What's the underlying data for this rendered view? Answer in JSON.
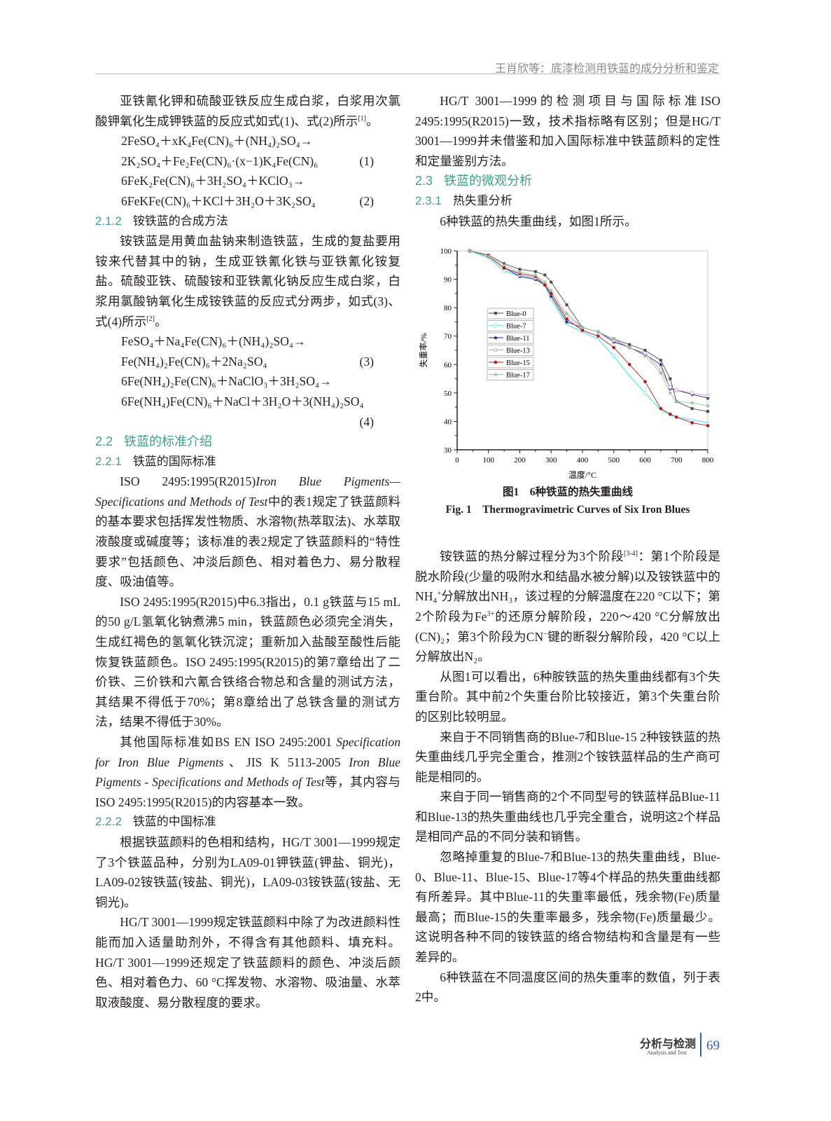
{
  "header": {
    "running_title": "王肖欣等：底漆检测用铁蓝的成分分析和鉴定"
  },
  "left": {
    "blocks": [
      {
        "type": "p",
        "segs": [
          "亚铁氰化钾和硫酸亚铁反应生成白浆，白浆用次氯酸钾氧化生成钾铁蓝的反应式如式(1)、式(2)所示",
          {
            "sup": "[1]"
          },
          "。"
        ]
      },
      {
        "type": "eq",
        "segs": [
          "2FeSO₄＋xK₄Fe(CN)₆＋(NH₄)₂SO₄→"
        ]
      },
      {
        "type": "eq",
        "segs": [
          "2K₂SO₄＋Fe₂Fe(CN)₆·(x−1)K₄Fe(CN)₆"
        ],
        "num": "(1)"
      },
      {
        "type": "eq",
        "segs": [
          "6FeK₂Fe(CN)₆＋3H₂SO₄＋KClO₃→"
        ]
      },
      {
        "type": "eq",
        "segs": [
          "6FeKFe(CN)₆＋KCl＋3H₂O＋3K₂SO₄"
        ],
        "num": "(2)"
      },
      {
        "type": "h3",
        "num": "2.1.2",
        "title": "铵铁蓝的合成方法"
      },
      {
        "type": "p",
        "segs": [
          "铵铁蓝是用黄血盐钠来制造铁蓝，生成的复盐要用铵来代替其中的钠，生成亚铁氰化铁与亚铁氰化铵复盐。硫酸亚铁、硫酸铵和亚铁氰化钠反应生成白浆，白浆用氯酸钠氧化生成铵铁蓝的反应式分两步，如式(3)、式(4)所示",
          {
            "sup": "[2]"
          },
          "。"
        ]
      },
      {
        "type": "eq",
        "segs": [
          "FeSO₄＋Na₄Fe(CN)₆＋(NH₄)₂SO₄→"
        ]
      },
      {
        "type": "eq",
        "segs": [
          "Fe(NH₄)₂Fe(CN)₆＋2Na₂SO₄"
        ],
        "num": "(3)"
      },
      {
        "type": "eq",
        "segs": [
          "6Fe(NH₄)₂Fe(CN)₆＋NaClO₃＋3H₂SO₄→"
        ]
      },
      {
        "type": "eq",
        "segs": [
          "6Fe(NH₄)Fe(CN)₆＋NaCl＋3H₂O＋3(NH₄)₂SO₄"
        ]
      },
      {
        "type": "eqnum",
        "num": "(4)"
      },
      {
        "type": "h2",
        "num": "2.2",
        "title": "铁蓝的标准介绍"
      },
      {
        "type": "h3",
        "num": "2.2.1",
        "title": "铁蓝的国际标准"
      },
      {
        "type": "p",
        "segs": [
          "ISO 2495:1995(R2015)",
          {
            "i": "Iron Blue Pigments—Specifications and Methods of Test"
          },
          "中的表1规定了铁蓝颜料的基本要求包括挥发性物质、水溶物(热萃取法)、水萃取液酸度或碱度等；该标准的表2规定了铁蓝颜料的“特性要求”包括颜色、冲淡后颜色、相对着色力、易分散程度、吸油值等。"
        ]
      },
      {
        "type": "p",
        "segs": [
          "ISO 2495:1995(R2015)中6.3指出，0.1 g铁蓝与15 mL的50 g/L氢氧化钠煮沸5 min，铁蓝颜色必须完全消失，生成红褐色的氢氧化铁沉淀；重新加入盐酸至酸性后能恢复铁蓝颜色。ISO 2495:1995(R2015)的第7章给出了二价铁、三价铁和六氰合铁络合物总和含量的测试方法，其结果不得低于70%；第8章给出了总铁含量的测试方法，结果不得低于30%。"
        ]
      },
      {
        "type": "p",
        "segs": [
          "其他国际标准如BS EN ISO 2495:2001 ",
          {
            "i": "Specification for Iron Blue Pigments"
          },
          "、JIS K 5113-2005 ",
          {
            "i": "Iron Blue Pigments - Specifications and Methods of Test"
          },
          "等，其内容与ISO 2495:1995(R2015)的内容基本一致。"
        ]
      },
      {
        "type": "h3",
        "num": "2.2.2",
        "title": "铁蓝的中国标准"
      },
      {
        "type": "p",
        "segs": [
          "根据铁蓝颜料的色相和结构，HG/T 3001—1999规定了3个铁蓝品种，分别为LA09-01钾铁蓝(钾盐、铜光)，LA09-02铵铁蓝(铵盐、铜光)，LA09-03铵铁蓝(铵盐、无铜光)。"
        ]
      },
      {
        "type": "p",
        "segs": [
          "HG/T 3001—1999规定铁蓝颜料中除了为改进颜料性能而加入适量助剂外，不得含有其他颜料、填充料。HG/T 3001—1999还规定了铁蓝颜料的颜色、冲淡后颜色、相对着色力、60 °C挥发物、水溶物、吸油量、水萃取液酸度、易分散程度的要求。"
        ]
      }
    ]
  },
  "right_top": {
    "blocks": [
      {
        "type": "p",
        "segs": [
          "HG/T 3001—1999的检测项目与国际标准ISO 2495:1995(R2015)一致，技术指标略有区别；但是HG/T 3001—1999并未借鉴和加入国际标准中铁蓝颜料的定性和定量鉴别方法。"
        ]
      },
      {
        "type": "h2",
        "num": "2.3",
        "title": "铁蓝的微观分析"
      },
      {
        "type": "h3",
        "num": "2.3.1",
        "title": "热失重分析"
      },
      {
        "type": "p",
        "segs": [
          "6种铁蓝的热失重曲线，如图1所示。"
        ]
      }
    ]
  },
  "right_bottom": {
    "blocks": [
      {
        "type": "p",
        "segs": [
          "铵铁蓝的热分解过程分为3个阶段",
          {
            "sup": "[3-4]"
          },
          "：第1个阶段是脱水阶段(少量的吸附水和结晶水被分解)以及铵铁蓝中的NH₄",
          {
            "sup": "+"
          },
          "分解放出NH₃，该过程的分解温度在220 °C以下；第2个阶段为Fe",
          {
            "sup": "3+"
          },
          "的还原分解阶段，220～420 °C分解放出(CN)₂；第3个阶段为CN",
          {
            "sup": "−"
          },
          "键的断裂分解阶段，420 °C以上分解放出N₂。"
        ]
      },
      {
        "type": "p",
        "segs": [
          "从图1可以看出，6种胺铁蓝的热失重曲线都有3个失重台阶。其中前2个失重台阶比较接近，第3个失重台阶的区别比较明显。"
        ]
      },
      {
        "type": "p",
        "segs": [
          "来自于不同销售商的Blue-7和Blue-15 2种铵铁蓝的热失重曲线几乎完全重合，推测2个铵铁蓝样品的生产商可能是相同的。"
        ]
      },
      {
        "type": "p",
        "segs": [
          "来自于同一销售商的2个不同型号的铁蓝样品Blue-11和Blue-13的热失重曲线也几乎完全重合，说明这2个样品是相同产品的不同分装和销售。"
        ]
      },
      {
        "type": "p",
        "segs": [
          "忽略掉重复的Blue-7和Blue-13的热失重曲线，Blue-0、Blue-11、Blue-15、Blue-17等4个样品的热失重曲线都有所差异。其中Blue-11的失重率最低，残余物(Fe)质量最高；而Blue-15的失重率最多，残余物(Fe)质量最少。这说明各种不同的铵铁蓝的络合物结构和含量是有一些差异的。"
        ]
      },
      {
        "type": "p",
        "segs": [
          "6种铁蓝在不同温度区间的热失重率的数值，列于表2中。"
        ]
      }
    ]
  },
  "figure": {
    "caption_cn": "图1　6种铁蓝的热失重曲线",
    "caption_en": "Fig. 1　Thermogravimetric Curves of Six Iron Blues"
  },
  "chart_data": {
    "type": "line",
    "xlabel": "温度/°C",
    "ylabel": "失重率/%",
    "xlim": [
      0,
      800
    ],
    "ylim": [
      30,
      100
    ],
    "xticks": [
      0,
      100,
      200,
      300,
      400,
      500,
      600,
      700,
      800
    ],
    "yticks": [
      30,
      40,
      50,
      60,
      70,
      80,
      90,
      100
    ],
    "grid": false,
    "legend_position": "left-middle",
    "x": [
      40,
      100,
      150,
      200,
      250,
      280,
      300,
      350,
      400,
      450,
      500,
      550,
      600,
      650,
      680,
      700,
      750,
      800
    ],
    "series": [
      {
        "name": "Blue-0",
        "color": "#4a4a4a",
        "marker": "square",
        "values": [
          100,
          98.5,
          95.5,
          93.5,
          92.7,
          91.5,
          89,
          81,
          73,
          71.5,
          69,
          67,
          65,
          61.5,
          55,
          47,
          44.5,
          43.5
        ]
      },
      {
        "name": "Blue-7",
        "color": "#7fe6ee",
        "marker": "open-circle",
        "values": [
          100,
          97.5,
          93,
          91,
          90,
          88,
          83,
          74,
          71.5,
          69,
          63,
          56,
          50,
          44,
          42.5,
          41.5,
          40.5,
          39.5
        ]
      },
      {
        "name": "Blue-11",
        "color": "#22288a",
        "marker": "star",
        "values": [
          100,
          98,
          94,
          91,
          90,
          88,
          84,
          75,
          73,
          71.5,
          68,
          66,
          63.5,
          60,
          51.5,
          51,
          49.5,
          48.2
        ]
      },
      {
        "name": "Blue-13",
        "color": "#c79ac0",
        "marker": "open-circle",
        "values": [
          100,
          98,
          94,
          91.5,
          90.5,
          88,
          85,
          77,
          73,
          71.5,
          68.5,
          66,
          64,
          58,
          52,
          51,
          50,
          49
        ]
      },
      {
        "name": "Blue-15",
        "color": "#a3201f",
        "marker": "dot",
        "values": [
          100,
          98,
          94,
          92,
          91,
          88,
          85,
          76,
          72,
          70,
          66,
          60,
          54,
          44.5,
          42.5,
          41.5,
          39.5,
          38.5
        ]
      },
      {
        "name": "Blue-17",
        "color": "#9cc29a",
        "marker": "star",
        "values": [
          100,
          98,
          95,
          92.5,
          91.5,
          89,
          86,
          78,
          73,
          71.5,
          69,
          66,
          63,
          57,
          50,
          47,
          46.5,
          45.5
        ]
      }
    ]
  },
  "footer": {
    "journal_cn": "分析与检测",
    "journal_en": "Analysis and Test",
    "page": "69"
  }
}
